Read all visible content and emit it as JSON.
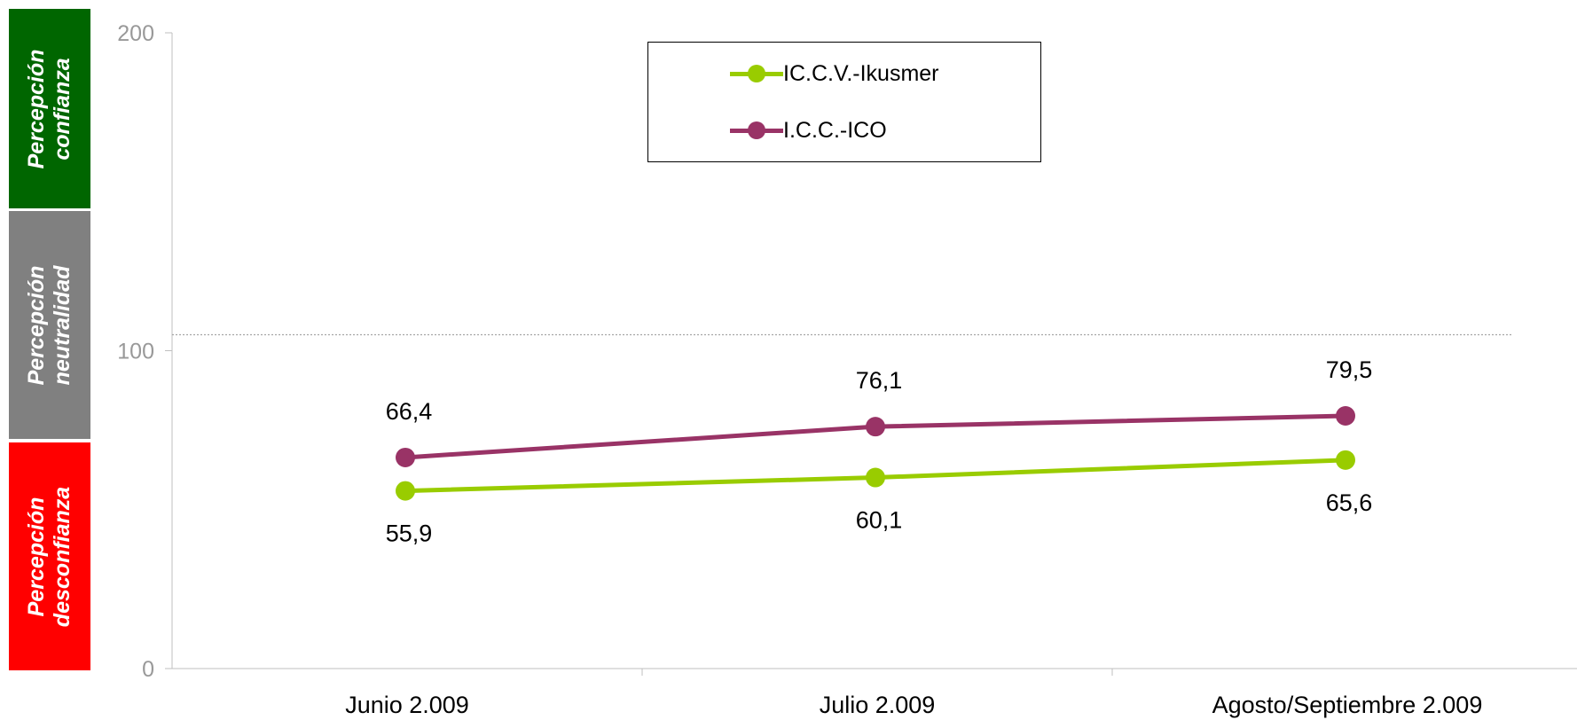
{
  "bands": [
    {
      "line1": "Percepción",
      "line2": "confianza",
      "color": "#006600"
    },
    {
      "line1": "Percepción",
      "line2": "neutralidad",
      "color": "#808080"
    },
    {
      "line1": "Percepción",
      "line2": "desconfianza",
      "color": "#ff0000"
    }
  ],
  "legend": {
    "items": [
      {
        "label": "IC.C.V.-Ikusmer",
        "color": "#99cc00"
      },
      {
        "label": "I.C.C.-ICO",
        "color": "#993366"
      }
    ]
  },
  "chart_data": {
    "type": "line",
    "title": "",
    "xlabel": "",
    "ylabel": "",
    "categories": [
      "Junio 2.009",
      "Julio 2.009",
      "Agosto/Septiembre 2.009"
    ],
    "ylim": [
      0,
      200
    ],
    "yticks": [
      0,
      100,
      200
    ],
    "reference_line": 100,
    "grid": false,
    "legend_position": "top-center",
    "series": [
      {
        "name": "IC.C.V.-Ikusmer",
        "color": "#99cc00",
        "values": [
          55.9,
          60.1,
          65.6
        ],
        "labels": [
          "55,9",
          "60,1",
          "65,6"
        ],
        "label_position": "below"
      },
      {
        "name": "I.C.C.-ICO",
        "color": "#993366",
        "values": [
          66.4,
          76.1,
          79.5
        ],
        "labels": [
          "66,4",
          "76,1",
          "79,5"
        ],
        "label_position": "above"
      }
    ]
  }
}
